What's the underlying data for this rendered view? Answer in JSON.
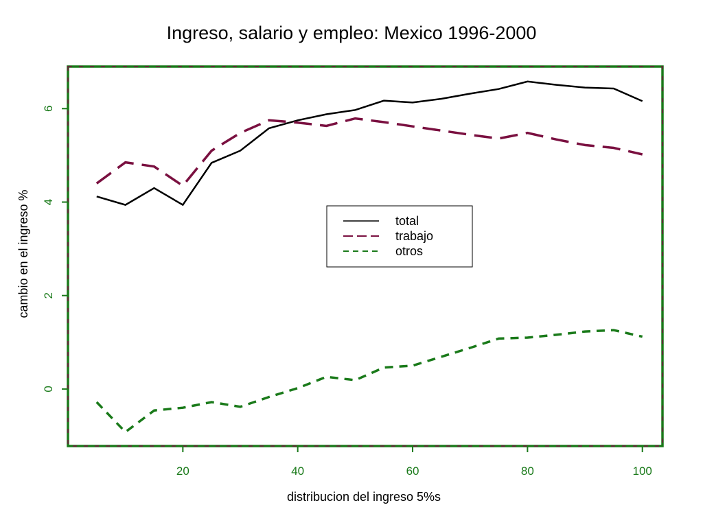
{
  "chart_data": {
    "type": "line",
    "title": "Ingreso, salario y empleo: Mexico 1996-2000",
    "xlabel": "distribucion del ingreso 5%s",
    "ylabel": "cambio en el ingreso %",
    "xlim": [
      0,
      103.5
    ],
    "ylim": [
      -1.22,
      6.9
    ],
    "xticks": [
      20,
      40,
      60,
      80,
      100
    ],
    "yticks": [
      0,
      2,
      4,
      6
    ],
    "x": [
      5,
      10,
      15,
      20,
      25,
      30,
      35,
      40,
      45,
      50,
      55,
      60,
      65,
      70,
      75,
      80,
      85,
      90,
      95,
      100
    ],
    "series": [
      {
        "name": "total",
        "color": "#000000",
        "dash": "solid",
        "values": [
          4.12,
          3.94,
          4.3,
          3.94,
          4.84,
          5.1,
          5.58,
          5.75,
          5.88,
          5.97,
          6.17,
          6.13,
          6.21,
          6.32,
          6.42,
          6.58,
          6.51,
          6.45,
          6.43,
          6.16
        ]
      },
      {
        "name": "trabajo",
        "color": "#7a1040",
        "dash": "long",
        "values": [
          4.4,
          4.85,
          4.76,
          4.35,
          5.1,
          5.48,
          5.75,
          5.7,
          5.63,
          5.79,
          5.71,
          5.62,
          5.53,
          5.44,
          5.36,
          5.48,
          5.34,
          5.22,
          5.16,
          5.02
        ]
      },
      {
        "name": "otros",
        "color": "#1a7a1a",
        "dash": "short",
        "values": [
          -0.28,
          -0.92,
          -0.46,
          -0.4,
          -0.28,
          -0.38,
          -0.17,
          0.02,
          0.26,
          0.19,
          0.46,
          0.5,
          0.69,
          0.88,
          1.08,
          1.1,
          1.16,
          1.23,
          1.26,
          1.12
        ]
      }
    ],
    "legend_position": "center",
    "grid": false
  }
}
